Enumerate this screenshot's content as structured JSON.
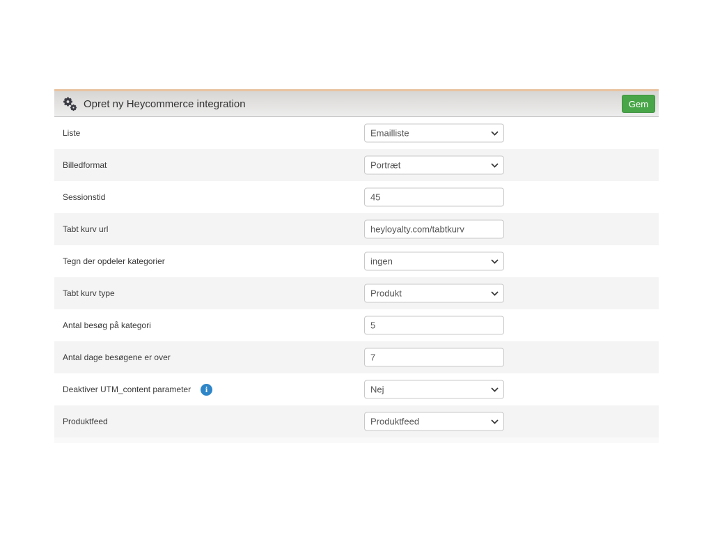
{
  "header": {
    "title": "Opret ny Heycommerce integration",
    "save_label": "Gem",
    "icon": "gears-icon"
  },
  "colors": {
    "accent_green": "#48a648",
    "top_border_tan": "#e9c3a1",
    "info_blue": "#2e86c8",
    "row_alt_gray": "#f4f4f4",
    "header_gradient_top": "#d8d6d4",
    "header_gradient_bottom": "#ededed"
  },
  "form": {
    "rows": [
      {
        "name": "liste",
        "label": "Liste",
        "type": "select",
        "value": "Emailliste",
        "has_info": false
      },
      {
        "name": "billedformat",
        "label": "Billedformat",
        "type": "select",
        "value": "Portræt",
        "has_info": false
      },
      {
        "name": "sessionstid",
        "label": "Sessionstid",
        "type": "input",
        "value": "45",
        "has_info": false
      },
      {
        "name": "tabt-kurv-url",
        "label": "Tabt kurv url",
        "type": "input",
        "value": "heyloyalty.com/tabtkurv",
        "has_info": false
      },
      {
        "name": "tegn-der-opdeler-kategorier",
        "label": "Tegn der opdeler kategorier",
        "type": "select",
        "value": "ingen",
        "has_info": false
      },
      {
        "name": "tabt-kurv-type",
        "label": "Tabt kurv type",
        "type": "select",
        "value": "Produkt",
        "has_info": false
      },
      {
        "name": "antal-besoeg-paa-kategori",
        "label": "Antal besøg på kategori",
        "type": "input",
        "value": "5",
        "has_info": false
      },
      {
        "name": "antal-dage-besoegene-er-over",
        "label": "Antal dage besøgene er over",
        "type": "input",
        "value": "7",
        "has_info": false
      },
      {
        "name": "deaktiver-utm-content-parameter",
        "label": "Deaktiver UTM_content parameter",
        "type": "select",
        "value": "Nej",
        "has_info": true
      },
      {
        "name": "produktfeed",
        "label": "Produktfeed",
        "type": "select",
        "value": "Produktfeed",
        "has_info": false
      }
    ],
    "info_icon_glyph": "i"
  }
}
